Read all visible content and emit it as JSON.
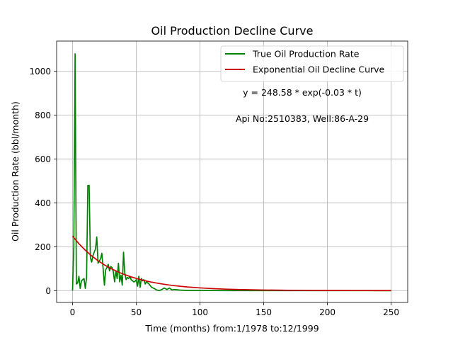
{
  "chart_data": {
    "type": "line",
    "title": "Oil Production Decline Curve",
    "xlabel": "Time (months) from:1/1978 to:12/1999",
    "ylabel": "Oil Production Rate (bbl/month)",
    "xlim": [
      -12.5,
      263
    ],
    "ylim": [
      -54,
      1138
    ],
    "xticks": [
      0,
      50,
      100,
      150,
      200,
      250
    ],
    "yticks": [
      0,
      200,
      400,
      600,
      800,
      1000
    ],
    "grid": true,
    "legend_position": "top-right",
    "annotations": [
      "y = 248.58 * exp(-0.03 * t)",
      "Api No:2510383, Well:86-A-29"
    ],
    "series": [
      {
        "name": "True Oil Production Rate",
        "color": "#008000",
        "x": [
          0,
          1,
          2,
          3,
          4,
          5,
          6,
          7,
          8,
          9,
          10,
          11,
          12,
          13,
          14,
          15,
          16,
          17,
          18,
          19,
          20,
          21,
          22,
          23,
          24,
          25,
          26,
          27,
          28,
          29,
          30,
          31,
          32,
          33,
          34,
          35,
          36,
          37,
          38,
          39,
          40,
          41,
          42,
          43,
          44,
          45,
          46,
          47,
          48,
          49,
          50,
          51,
          52,
          53,
          54,
          55,
          56,
          57,
          58,
          59,
          60,
          62,
          64,
          66,
          68,
          70,
          72,
          74,
          76,
          78,
          80,
          85,
          90,
          100,
          120,
          140,
          160,
          180,
          200,
          220,
          240,
          250
        ],
        "y": [
          0,
          210,
          1080,
          30,
          35,
          65,
          10,
          45,
          50,
          55,
          10,
          60,
          480,
          480,
          150,
          130,
          160,
          175,
          190,
          245,
          125,
          135,
          145,
          170,
          100,
          25,
          95,
          105,
          120,
          90,
          110,
          105,
          85,
          40,
          90,
          55,
          125,
          40,
          70,
          25,
          175,
          80,
          50,
          60,
          55,
          65,
          50,
          45,
          40,
          42,
          50,
          20,
          65,
          15,
          55,
          45,
          50,
          30,
          40,
          35,
          30,
          15,
          10,
          3,
          0,
          5,
          12,
          5,
          12,
          3,
          5,
          2,
          1,
          1,
          0,
          0,
          0,
          0,
          0,
          0,
          0,
          0
        ]
      },
      {
        "name": "Exponential Oil Decline Curve",
        "color": "#cc0000",
        "x": [
          0,
          5,
          10,
          15,
          20,
          25,
          30,
          35,
          40,
          45,
          50,
          55,
          60,
          65,
          70,
          75,
          80,
          90,
          100,
          110,
          120,
          130,
          140,
          150,
          160,
          170,
          180,
          190,
          200,
          210,
          220,
          230,
          240,
          250
        ],
        "y": [
          248.58,
          214.0,
          184.2,
          158.5,
          136.4,
          117.4,
          101.1,
          87.0,
          74.9,
          64.5,
          55.5,
          47.8,
          41.1,
          35.4,
          30.5,
          26.2,
          22.6,
          16.7,
          12.4,
          9.2,
          6.8,
          5.0,
          3.7,
          2.8,
          2.0,
          1.5,
          1.1,
          0.8,
          0.6,
          0.5,
          0.3,
          0.3,
          0.2,
          0.1
        ]
      }
    ]
  }
}
